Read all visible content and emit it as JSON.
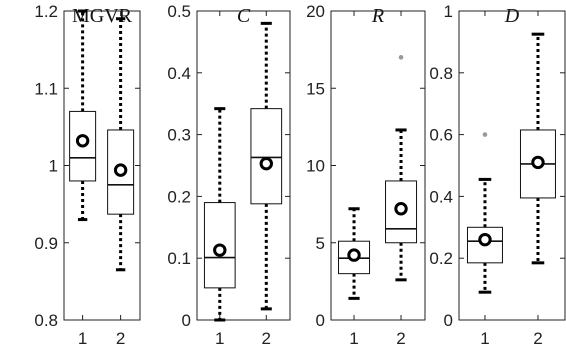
{
  "chart_data": [
    {
      "type": "box",
      "title": "MGVR",
      "title_style": "upright",
      "categories": [
        "1",
        "2"
      ],
      "ylim": [
        0.8,
        1.2
      ],
      "yticks": [
        0.8,
        0.9,
        1,
        1.1,
        1.2
      ],
      "ytick_labels": [
        "0.8",
        "0.9",
        "1",
        "1.1",
        "1.2"
      ],
      "boxes": [
        {
          "whisker_low": 0.93,
          "q1": 0.98,
          "median": 1.01,
          "q3": 1.07,
          "whisker_high": 1.2,
          "mean": 1.032,
          "outliers": []
        },
        {
          "whisker_low": 0.865,
          "q1": 0.937,
          "median": 0.975,
          "q3": 1.046,
          "whisker_high": 1.19,
          "mean": 0.994,
          "outliers": []
        }
      ]
    },
    {
      "type": "box",
      "title": "C",
      "title_style": "italic",
      "categories": [
        "1",
        "2"
      ],
      "ylim": [
        0,
        0.5
      ],
      "yticks": [
        0,
        0.1,
        0.2,
        0.3,
        0.4,
        0.5
      ],
      "ytick_labels": [
        "0",
        "0.1",
        "0.2",
        "0.3",
        "0.4",
        "0.5"
      ],
      "boxes": [
        {
          "whisker_low": 0.0,
          "q1": 0.052,
          "median": 0.101,
          "q3": 0.19,
          "whisker_high": 0.342,
          "mean": 0.113,
          "outliers": []
        },
        {
          "whisker_low": 0.018,
          "q1": 0.188,
          "median": 0.263,
          "q3": 0.342,
          "whisker_high": 0.48,
          "mean": 0.253,
          "outliers": []
        }
      ]
    },
    {
      "type": "box",
      "title": "R",
      "title_style": "italic",
      "categories": [
        "1",
        "2"
      ],
      "ylim": [
        0,
        20
      ],
      "yticks": [
        0,
        5,
        10,
        15,
        20
      ],
      "ytick_labels": [
        "0",
        "5",
        "10",
        "15",
        "20"
      ],
      "boxes": [
        {
          "whisker_low": 1.4,
          "q1": 3.0,
          "median": 4.0,
          "q3": 5.1,
          "whisker_high": 7.2,
          "mean": 4.2,
          "outliers": []
        },
        {
          "whisker_low": 2.6,
          "q1": 5.0,
          "median": 5.9,
          "q3": 9.0,
          "whisker_high": 12.3,
          "mean": 7.2,
          "outliers": [
            17.0
          ]
        }
      ]
    },
    {
      "type": "box",
      "title": "D",
      "title_style": "italic",
      "categories": [
        "1",
        "2"
      ],
      "ylim": [
        0,
        1
      ],
      "yticks": [
        0,
        0.2,
        0.4,
        0.6,
        0.8,
        1
      ],
      "ytick_labels": [
        "0",
        "0.2",
        "0.4",
        "0.6",
        "0.8",
        "1"
      ],
      "boxes": [
        {
          "whisker_low": 0.09,
          "q1": 0.185,
          "median": 0.255,
          "q3": 0.3,
          "whisker_high": 0.455,
          "mean": 0.26,
          "outliers": [
            0.6
          ]
        },
        {
          "whisker_low": 0.185,
          "q1": 0.395,
          "median": 0.505,
          "q3": 0.615,
          "whisker_high": 0.925,
          "mean": 0.51,
          "outliers": []
        }
      ]
    }
  ],
  "colors": {
    "axis": "#222222",
    "box": "#111111",
    "whisker": "#000000",
    "mean_marker": "#000000",
    "outlier": "#999999"
  }
}
